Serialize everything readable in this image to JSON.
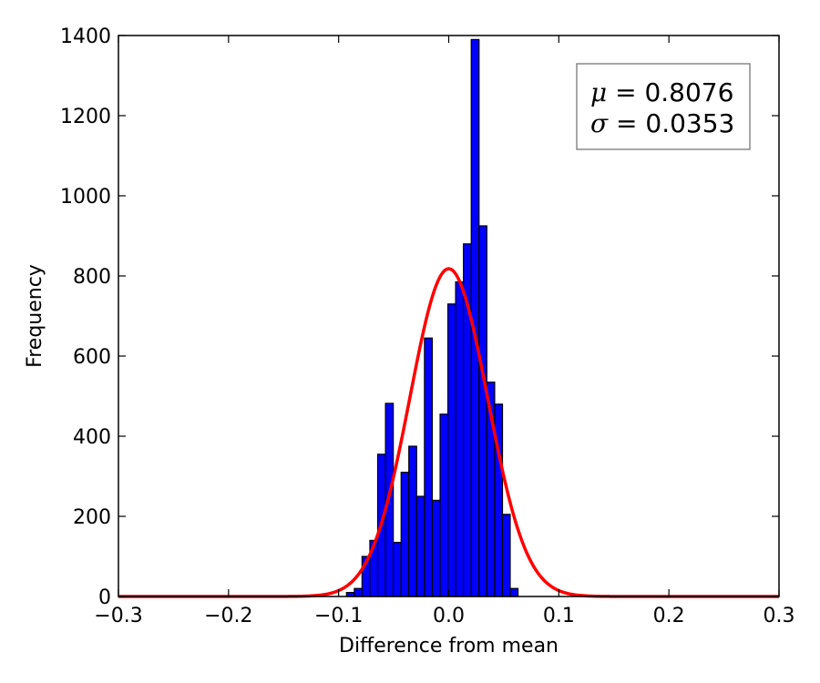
{
  "chart_data": {
    "type": "bar",
    "xlabel": "Difference from mean",
    "ylabel": "Frequency",
    "xlim": [
      -0.3,
      0.3
    ],
    "ylim": [
      0,
      1400
    ],
    "x_ticks": [
      -0.3,
      -0.2,
      -0.1,
      0.0,
      0.1,
      0.2,
      0.3
    ],
    "x_tick_labels": [
      "−0.3",
      "−0.2",
      "−0.1",
      "0.0",
      "0.1",
      "0.2",
      "0.3"
    ],
    "y_ticks": [
      0,
      200,
      400,
      600,
      800,
      1000,
      1200,
      1400
    ],
    "y_tick_labels": [
      "0",
      "200",
      "400",
      "600",
      "800",
      "1000",
      "1200",
      "1400"
    ],
    "bin_width": 0.00708,
    "bin_centers": [
      -0.0893,
      -0.0822,
      -0.0752,
      -0.0681,
      -0.061,
      -0.0539,
      -0.0468,
      -0.0397,
      -0.0327,
      -0.0256,
      -0.0185,
      -0.0114,
      -0.0043,
      0.0028,
      0.0098,
      0.0169,
      0.024,
      0.0311,
      0.0382,
      0.0453,
      0.0523,
      0.0594
    ],
    "counts": [
      10,
      20,
      100,
      140,
      355,
      482,
      135,
      310,
      375,
      250,
      645,
      240,
      455,
      730,
      785,
      880,
      1390,
      925,
      535,
      480,
      205,
      20
    ],
    "fit_curve": {
      "color": "#ff0000",
      "mu": 0.0,
      "sigma": 0.0353,
      "peak": 818
    },
    "legend": {
      "mu_symbol": "μ",
      "mu_text": " = 0.8076",
      "sigma_symbol": "σ",
      "sigma_text": " = 0.0353",
      "placement": "top-right"
    },
    "bar_color": "#0000ff",
    "grid": false
  }
}
